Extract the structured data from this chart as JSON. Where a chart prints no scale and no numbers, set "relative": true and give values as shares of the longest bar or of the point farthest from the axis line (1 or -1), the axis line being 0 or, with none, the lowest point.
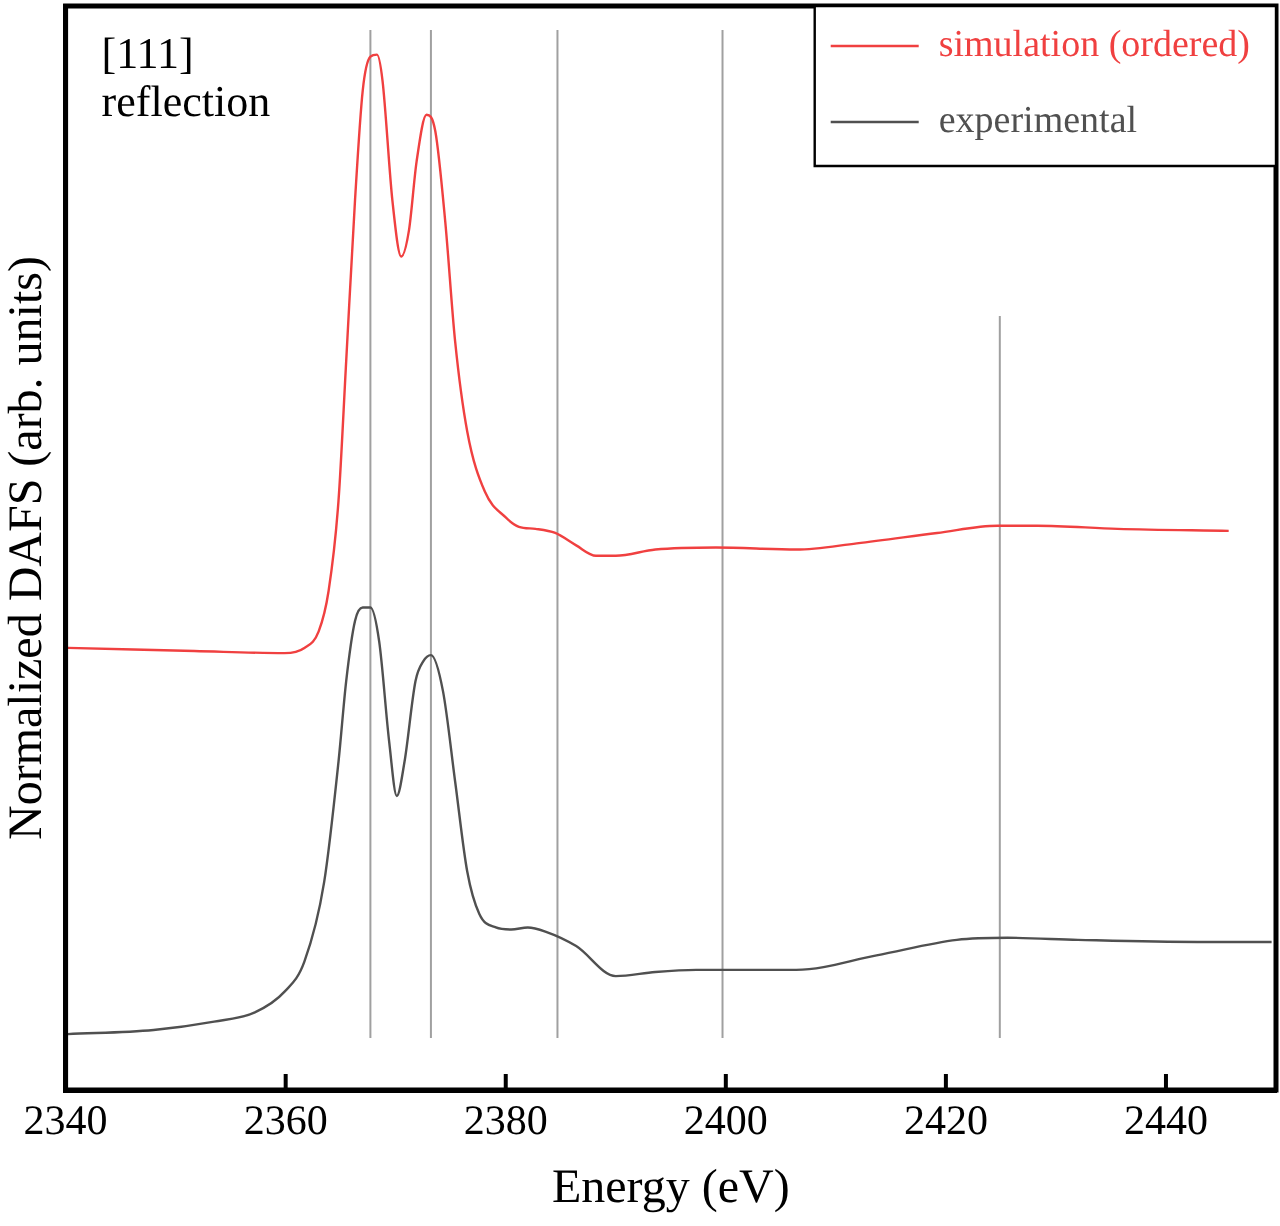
{
  "chart_data": {
    "type": "line",
    "relative": true,
    "xlabel": "Energy (eV)",
    "ylabel": "Normalized DAFS (arb. units)",
    "xlim": [
      2340,
      2450
    ],
    "xticks": [
      2340,
      2360,
      2380,
      2400,
      2420,
      2440
    ],
    "grid": false,
    "legend": "top right",
    "marker": "none",
    "line_style": "solid",
    "tick_labels": "x",
    "annotations": [
      "[111] reflection"
    ],
    "ref_lines": [
      {
        "axis": "x",
        "value": 2367.7,
        "color": "#a0a0a0"
      },
      {
        "axis": "x",
        "value": 2373.2,
        "color": "#a0a0a0"
      },
      {
        "axis": "x",
        "value": 2384.7,
        "color": "#a0a0a0"
      },
      {
        "axis": "x",
        "value": 2399.7,
        "color": "#a0a0a0"
      },
      {
        "axis": "x",
        "value": 2424.9,
        "color": "#a0a0a0"
      }
    ],
    "series": [
      {
        "name": "simulation (ordered)",
        "color": "#f04040",
        "x": [
          2340.2,
          2351.7,
          2359.9,
          2361.7,
          2363.0,
          2363.9,
          2364.8,
          2365.5,
          2366.3,
          2367.0,
          2367.7,
          2368.3,
          2368.8,
          2369.7,
          2370.5,
          2371.2,
          2371.9,
          2372.8,
          2373.6,
          2374.5,
          2375.4,
          2376.5,
          2378.1,
          2380.0,
          2381.2,
          2382.7,
          2384.5,
          2386.4,
          2388.2,
          2390.0,
          2393.6,
          2399.1,
          2406.4,
          2411.9,
          2419.2,
          2424.7,
          2428.3,
          2435.6,
          2445.7
        ],
        "values": [
          0.427,
          0.424,
          0.422,
          0.427,
          0.443,
          0.482,
          0.569,
          0.704,
          0.859,
          0.965,
          0.998,
          1,
          0.975,
          0.859,
          0.805,
          0.83,
          0.897,
          0.942,
          0.926,
          0.839,
          0.723,
          0.636,
          0.578,
          0.553,
          0.544,
          0.542,
          0.538,
          0.526,
          0.516,
          0.516,
          0.522,
          0.524,
          0.522,
          0.528,
          0.538,
          0.545,
          0.545,
          0.542,
          0.54
        ]
      },
      {
        "name": "experimental",
        "color": "#505050",
        "x": [
          2340.2,
          2348.0,
          2353.5,
          2357.2,
          2359.9,
          2361.7,
          2363.5,
          2364.8,
          2365.5,
          2366.3,
          2367.0,
          2367.7,
          2368.5,
          2369.4,
          2370.1,
          2370.8,
          2371.8,
          2372.5,
          2373.2,
          2374.3,
          2375.4,
          2376.5,
          2377.6,
          2379.1,
          2380.5,
          2382.0,
          2383.6,
          2386.4,
          2390.0,
          2393.6,
          2397.3,
          2406.4,
          2413.7,
          2421.0,
          2425.6,
          2432.0,
          2442.9,
          2449.6
        ],
        "values": [
          0.054,
          0.058,
          0.066,
          0.075,
          0.095,
          0.124,
          0.201,
          0.317,
          0.395,
          0.453,
          0.466,
          0.466,
          0.433,
          0.337,
          0.284,
          0.317,
          0.395,
          0.414,
          0.42,
          0.385,
          0.298,
          0.211,
          0.17,
          0.157,
          0.155,
          0.157,
          0.153,
          0.139,
          0.11,
          0.114,
          0.116,
          0.116,
          0.13,
          0.145,
          0.147,
          0.145,
          0.143,
          0.143
        ]
      }
    ]
  }
}
